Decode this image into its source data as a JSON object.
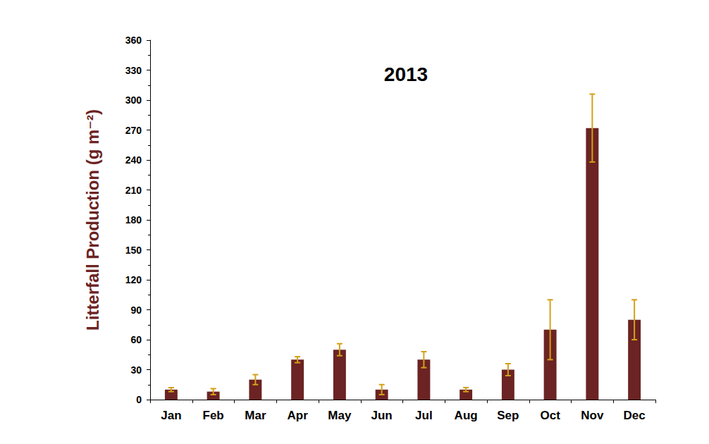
{
  "chart_data": {
    "type": "bar",
    "title": "2013",
    "y_label": "Litterfall Production (g m⁻²)",
    "categories": [
      "Jan",
      "Feb",
      "Mar",
      "Apr",
      "May",
      "Jun",
      "Jul",
      "Aug",
      "Sep",
      "Oct",
      "Nov",
      "Dec"
    ],
    "values": [
      10,
      8,
      20,
      40,
      50,
      10,
      40,
      10,
      30,
      70,
      272,
      80
    ],
    "errors": [
      2,
      3,
      5,
      3,
      6,
      5,
      8,
      2,
      6,
      30,
      34,
      20
    ],
    "color": "#6b2323",
    "ylim": [
      0,
      360
    ],
    "yticks": [
      0,
      30,
      60,
      90,
      120,
      150,
      180,
      210,
      240,
      270,
      300,
      330,
      360
    ],
    "grid": false
  }
}
